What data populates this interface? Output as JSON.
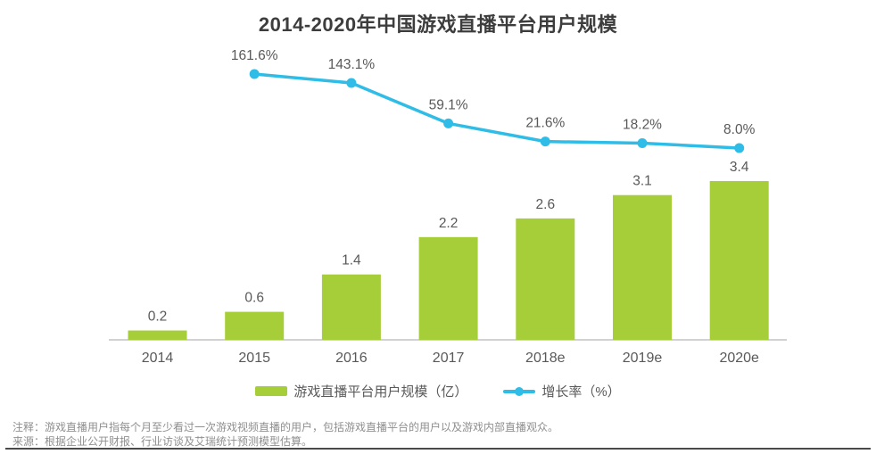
{
  "title": "2014-2020年中国游戏直播平台用户规模",
  "chart_data": {
    "type": "bar",
    "subtype": "bar+line combo",
    "categories": [
      "2014",
      "2015",
      "2016",
      "2017",
      "2018e",
      "2019e",
      "2020e"
    ],
    "series": [
      {
        "name": "游戏直播平台用户规模（亿）",
        "type": "bar",
        "values": [
          0.2,
          0.6,
          1.4,
          2.2,
          2.6,
          3.1,
          3.4
        ],
        "data_labels": [
          "0.2",
          "0.6",
          "1.4",
          "2.2",
          "2.6",
          "3.1",
          "3.4"
        ],
        "color": "#a6ce39"
      },
      {
        "name": "增长率（%）",
        "type": "line",
        "values": [
          null,
          161.6,
          143.1,
          59.1,
          21.6,
          18.2,
          8.0
        ],
        "data_labels": [
          null,
          "161.6%",
          "143.1%",
          "59.1%",
          "21.6%",
          "18.2%",
          "8.0%"
        ],
        "color": "#2fbce6"
      }
    ],
    "title": "2014-2020年中国游戏直播平台用户规模",
    "xlabel": "",
    "ylabel": "",
    "ylim_bar": [
      0,
      3.6
    ],
    "ylim_line_pct": [
      0,
      180
    ],
    "grid": false,
    "y_axis_ticks_visible": false,
    "legend_position": "bottom"
  },
  "legend": {
    "bar_label": "游戏直播平台用户规模（亿）",
    "line_label": "增长率（%）"
  },
  "notes": {
    "annotation": "注释：游戏直播用户指每个月至少看过一次游戏视频直播的用户，包括游戏直播平台的用户以及游戏内部直播观众。",
    "source": "来源：根据企业公开财报、行业访谈及艾瑞统计预测模型估算。"
  },
  "colors": {
    "bar": "#a6ce39",
    "line": "#2fbce6",
    "title_text": "#3d3d3d",
    "label_text": "#595959",
    "note_text": "#8f8f8f",
    "axis_line": "#a6a6a6",
    "bottom_rule": "#4a4a4a"
  }
}
